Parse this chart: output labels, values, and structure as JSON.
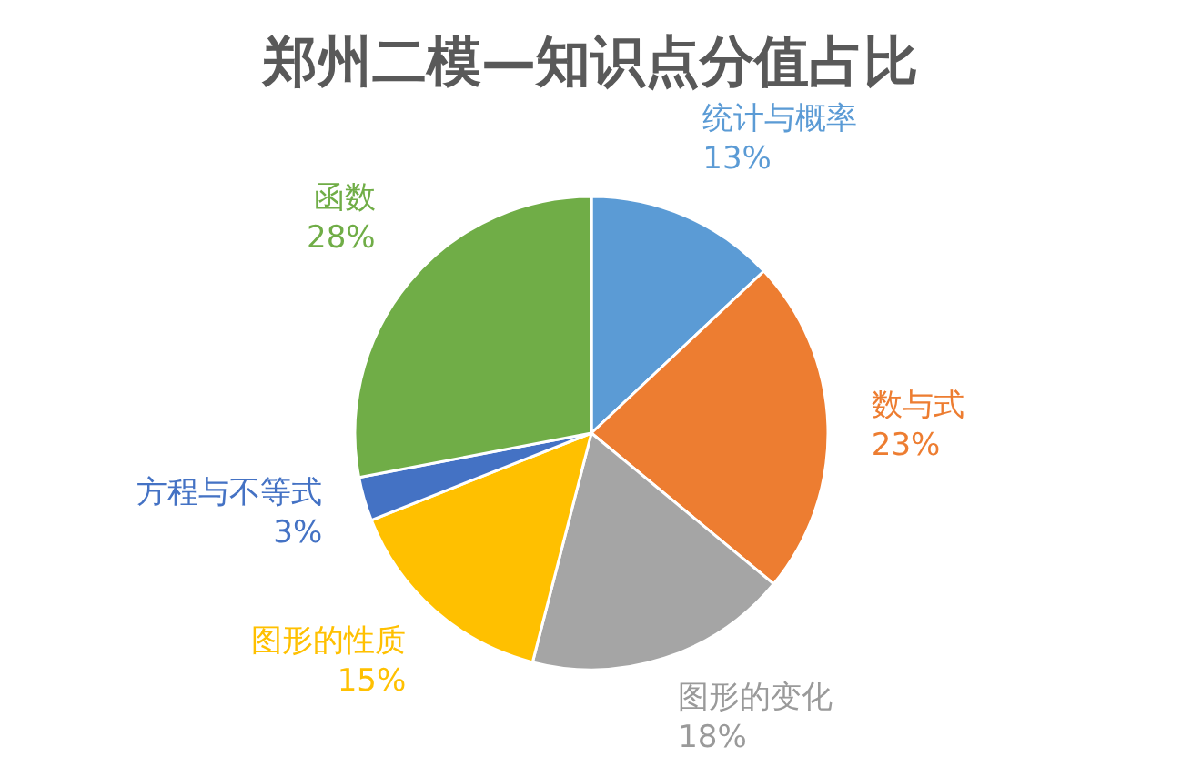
{
  "chart_data": {
    "type": "pie",
    "title": "郑州二模—知识点分值占比",
    "categories": [
      "统计与概率",
      "数与式",
      "图形的变化",
      "图形的性质",
      "方程与不等式",
      "函数"
    ],
    "values": [
      13,
      23,
      18,
      15,
      3,
      28
    ],
    "colors": [
      "#5b9bd5",
      "#ed7d31",
      "#a5a5a5",
      "#ffc000",
      "#4472c4",
      "#70ad47"
    ],
    "value_labels": [
      "13%",
      "23%",
      "18%",
      "15%",
      "3%",
      "28%"
    ]
  }
}
